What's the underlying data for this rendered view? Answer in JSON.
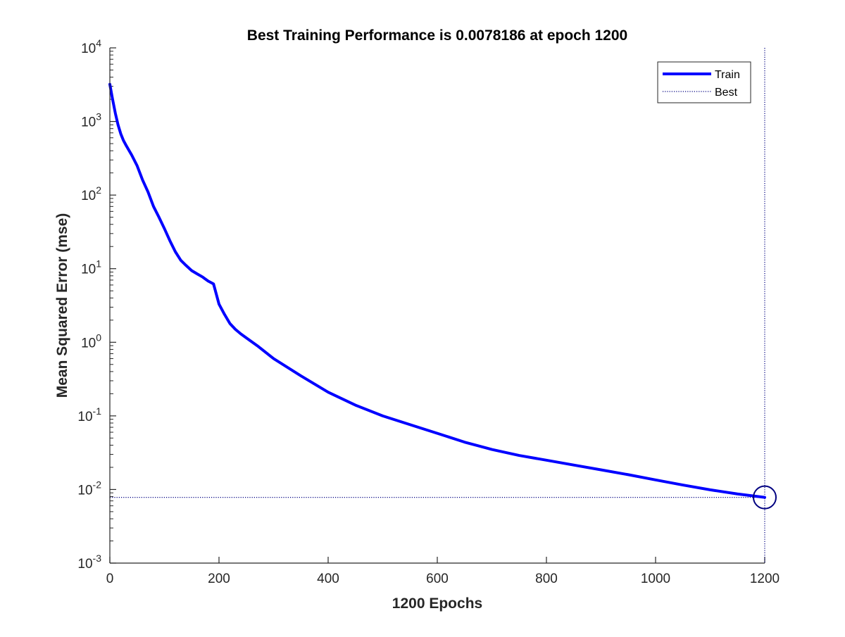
{
  "chart_data": {
    "type": "line",
    "title": "Best Training Performance is 0.0078186 at epoch 1200",
    "xlabel": "1200 Epochs",
    "ylabel": "Mean Squared Error  (mse)",
    "xlim": [
      0,
      1200
    ],
    "ylim": [
      0.001,
      10000
    ],
    "yscale": "log",
    "grid": false,
    "legend_position": "top-right",
    "x_ticks": [
      0,
      200,
      400,
      600,
      800,
      1000,
      1200
    ],
    "x_tick_labels": [
      "0",
      "200",
      "400",
      "600",
      "800",
      "1000",
      "1200"
    ],
    "y_ticks": [
      {
        "value": 10000,
        "base": "10",
        "exp": "4"
      },
      {
        "value": 1000,
        "base": "10",
        "exp": "3"
      },
      {
        "value": 100,
        "base": "10",
        "exp": "2"
      },
      {
        "value": 10,
        "base": "10",
        "exp": "1"
      },
      {
        "value": 1,
        "base": "10",
        "exp": "0"
      },
      {
        "value": 0.1,
        "base": "10",
        "exp": "-1"
      },
      {
        "value": 0.01,
        "base": "10",
        "exp": "-2"
      },
      {
        "value": 0.001,
        "base": "10",
        "exp": "-3"
      }
    ],
    "series": [
      {
        "name": "Train",
        "color": "#0000ff",
        "style": "solid",
        "x": [
          0,
          5,
          10,
          15,
          20,
          25,
          30,
          40,
          50,
          60,
          70,
          80,
          90,
          100,
          110,
          120,
          130,
          140,
          150,
          160,
          170,
          180,
          190,
          200,
          210,
          220,
          230,
          240,
          250,
          270,
          300,
          350,
          400,
          450,
          500,
          560,
          600,
          650,
          700,
          750,
          800,
          850,
          900,
          950,
          1000,
          1050,
          1100,
          1150,
          1200
        ],
        "y": [
          3200,
          2000,
          1300,
          900,
          680,
          550,
          470,
          350,
          250,
          160,
          110,
          70,
          50,
          35,
          24,
          17,
          13,
          11,
          9.4,
          8.5,
          7.7,
          6.8,
          6.2,
          3.3,
          2.4,
          1.8,
          1.5,
          1.3,
          1.15,
          0.9,
          0.6,
          0.35,
          0.21,
          0.14,
          0.1,
          0.072,
          0.058,
          0.044,
          0.035,
          0.029,
          0.025,
          0.0215,
          0.0185,
          0.0159,
          0.0135,
          0.0115,
          0.0099,
          0.0087,
          0.0078186
        ]
      },
      {
        "name": "Best",
        "color": "#000080",
        "style": "dotted"
      }
    ],
    "best": {
      "epoch": 1200,
      "value": 0.0078186
    }
  }
}
